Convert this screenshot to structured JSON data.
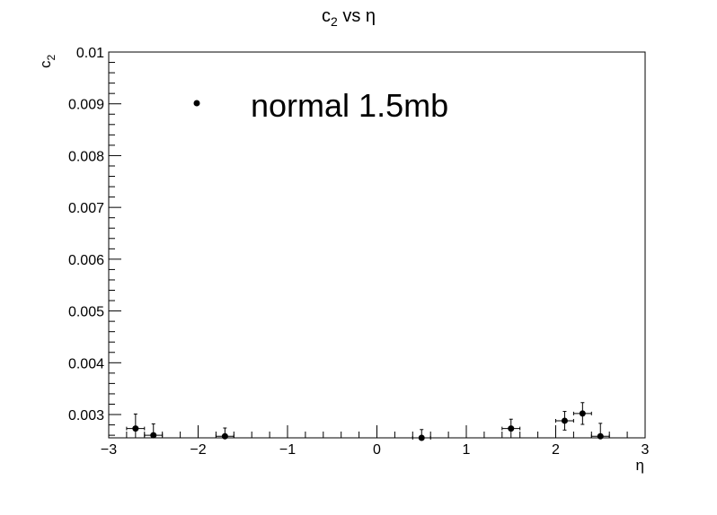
{
  "chart_data": {
    "type": "scatter",
    "title_main": "c",
    "title_sub": "2",
    "title_rest": " vs η",
    "xlabel": "η",
    "ylabel_main": "c",
    "ylabel_sub": "2",
    "xlim": [
      -3,
      3
    ],
    "ylim": [
      0.00255,
      0.01
    ],
    "x_ticks": [
      -3,
      -2,
      -1,
      0,
      1,
      2,
      3
    ],
    "x_tick_labels": [
      "−3",
      "−2",
      "−1",
      "0",
      "1",
      "2",
      "3"
    ],
    "y_ticks": [
      0.003,
      0.004,
      0.005,
      0.006,
      0.007,
      0.008,
      0.009,
      0.01
    ],
    "y_tick_labels": [
      "0.003",
      "0.004",
      "0.005",
      "0.006",
      "0.007",
      "0.008",
      "0.009",
      "0.01"
    ],
    "grid": false,
    "legend_position": "top-left",
    "series": [
      {
        "name": "normal 1.5mb",
        "color": "#000000",
        "x": [
          -2.7,
          -2.5,
          -1.7,
          0.5,
          1.5,
          2.1,
          2.3,
          2.5
        ],
        "y": [
          0.00273,
          0.0026,
          0.00258,
          0.00255,
          0.00273,
          0.00288,
          0.00302,
          0.00258
        ],
        "x_err": [
          0.1,
          0.1,
          0.1,
          0.1,
          0.1,
          0.1,
          0.1,
          0.1
        ],
        "y_err": [
          0.00028,
          0.00022,
          0.00016,
          0.00016,
          0.00018,
          0.00018,
          0.00021,
          0.00025
        ]
      }
    ]
  }
}
